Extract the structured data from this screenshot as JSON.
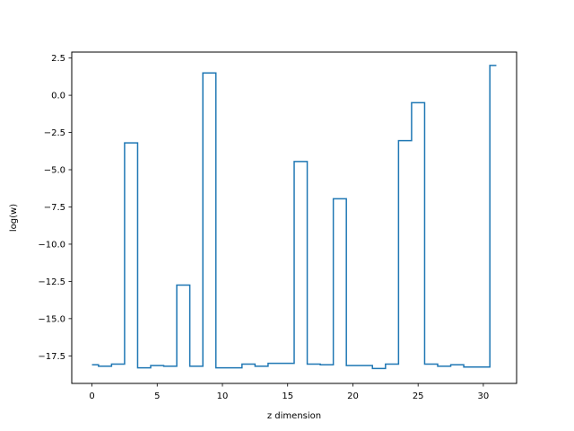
{
  "chart_data": {
    "type": "line",
    "step": "mid",
    "title": "",
    "xlabel": "z dimension",
    "ylabel": "log(w)",
    "xlim": [
      -1.55,
      32.55
    ],
    "ylim": [
      -19.35,
      2.9
    ],
    "xticks": [
      0,
      5,
      10,
      15,
      20,
      25,
      30
    ],
    "yticks": [
      2.5,
      0.0,
      -2.5,
      -5.0,
      -7.5,
      -10.0,
      -12.5,
      -15.0,
      -17.5
    ],
    "ytick_labels": [
      "2.5",
      "0.0",
      "−2.5",
      "−5.0",
      "−7.5",
      "−10.0",
      "−12.5",
      "−15.0",
      "−17.5"
    ],
    "line_color": "#1f77b4",
    "grid": false,
    "x": [
      0,
      1,
      2,
      3,
      4,
      5,
      6,
      7,
      8,
      9,
      10,
      11,
      12,
      13,
      14,
      15,
      16,
      17,
      18,
      19,
      20,
      21,
      22,
      23,
      24,
      25,
      26,
      27,
      28,
      29,
      30,
      31
    ],
    "y": [
      -18.1,
      -18.2,
      -18.05,
      -3.2,
      -18.3,
      -18.15,
      -18.2,
      -12.75,
      -18.2,
      1.5,
      -18.3,
      -18.3,
      -18.05,
      -18.2,
      -18.0,
      -18.0,
      -4.45,
      -18.05,
      -18.1,
      -6.95,
      -18.15,
      -18.15,
      -18.35,
      -18.05,
      -3.05,
      -0.5,
      -18.05,
      -18.2,
      -18.1,
      -18.25,
      -18.25,
      2.0
    ]
  }
}
